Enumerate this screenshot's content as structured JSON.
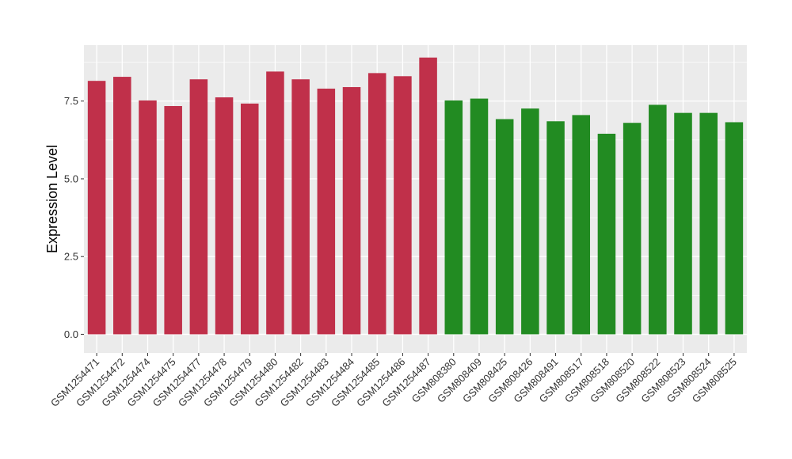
{
  "chart_data": {
    "type": "bar",
    "title": "",
    "xlabel": "",
    "ylabel": "Expression Level",
    "ylim": [
      -0.6,
      9.3
    ],
    "yticks": [
      0.0,
      2.5,
      5.0,
      7.5
    ],
    "ytick_labels": [
      "0.0",
      "2.5",
      "5.0",
      "7.5"
    ],
    "grid": true,
    "legend": "none",
    "panel_background": "#EBEBEB",
    "grid_color": "#FFFFFF",
    "categories": [
      "GSM1254471",
      "GSM1254472",
      "GSM1254474",
      "GSM1254475",
      "GSM1254477",
      "GSM1254478",
      "GSM1254479",
      "GSM1254480",
      "GSM1254482",
      "GSM1254483",
      "GSM1254484",
      "GSM1254485",
      "GSM1254486",
      "GSM1254487",
      "GSM808380",
      "GSM808409",
      "GSM808425",
      "GSM808426",
      "GSM808491",
      "GSM808517",
      "GSM808518",
      "GSM808520",
      "GSM808522",
      "GSM808523",
      "GSM808524",
      "GSM808525"
    ],
    "values": [
      8.15,
      8.28,
      7.52,
      7.34,
      8.2,
      7.62,
      7.42,
      8.45,
      8.2,
      7.9,
      7.95,
      8.4,
      8.3,
      8.9,
      7.52,
      7.58,
      6.92,
      7.26,
      6.85,
      7.05,
      6.45,
      6.8,
      7.38,
      7.12,
      7.12,
      6.82
    ],
    "bar_colors": [
      "#C0304A",
      "#C0304A",
      "#C0304A",
      "#C0304A",
      "#C0304A",
      "#C0304A",
      "#C0304A",
      "#C0304A",
      "#C0304A",
      "#C0304A",
      "#C0304A",
      "#C0304A",
      "#C0304A",
      "#C0304A",
      "#228B22",
      "#228B22",
      "#228B22",
      "#228B22",
      "#228B22",
      "#228B22",
      "#228B22",
      "#228B22",
      "#228B22",
      "#228B22",
      "#228B22",
      "#228B22"
    ]
  }
}
